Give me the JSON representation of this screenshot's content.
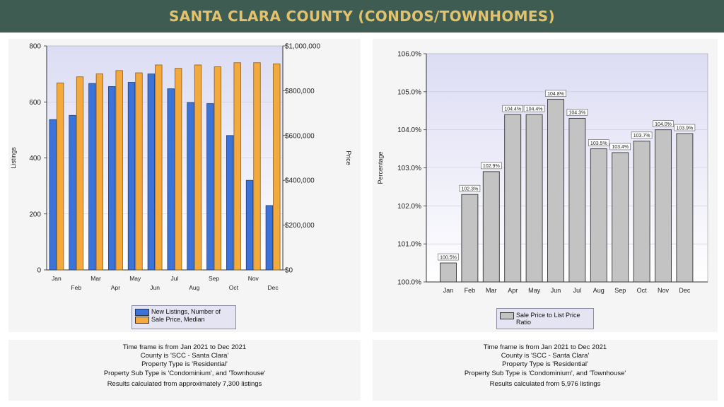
{
  "page": {
    "title": "SANTA CLARA COUNTY (CONDOS/TOWNHOMES)"
  },
  "colors": {
    "banner_bg": "#3f5c52",
    "banner_text": "#e2c26d",
    "listings": "#3b73d8",
    "price": "#f4a93c",
    "ratio": "#c3c3c3",
    "plot_bg": "#dcdcf2"
  },
  "chart_data": [
    {
      "type": "bar",
      "categories": [
        "Jan",
        "Feb",
        "Mar",
        "Apr",
        "May",
        "Jun",
        "Jul",
        "Aug",
        "Sep",
        "Oct",
        "Nov",
        "Dec"
      ],
      "series": [
        {
          "name": "New Listings, Number of",
          "axis": "left",
          "values": [
            537,
            552,
            666,
            655,
            670,
            700,
            647,
            598,
            594,
            480,
            320,
            230
          ]
        },
        {
          "name": "Sale Price, Median",
          "axis": "right",
          "values": [
            835000,
            862000,
            875000,
            890000,
            880000,
            915000,
            900000,
            915000,
            907000,
            925000,
            925000,
            920000
          ]
        }
      ],
      "ylabel": "Listings",
      "y2label": "Price",
      "ylim": [
        0,
        800
      ],
      "y2lim": [
        0,
        1000000
      ],
      "yticks": [
        "0",
        "200",
        "400",
        "600",
        "800"
      ],
      "y2ticks": [
        "$0",
        "$200,000",
        "$400,000",
        "$600,000",
        "$800,000",
        "$1,000,000"
      ],
      "legend": "bottom"
    },
    {
      "type": "bar",
      "categories": [
        "Jan",
        "Feb",
        "Mar",
        "Apr",
        "May",
        "Jun",
        "Jul",
        "Aug",
        "Sep",
        "Oct",
        "Nov",
        "Dec"
      ],
      "series": [
        {
          "name": "Sale Price to List Price Ratio",
          "values": [
            100.5,
            102.3,
            102.9,
            104.4,
            104.4,
            104.8,
            104.3,
            103.5,
            103.4,
            103.7,
            104.0,
            103.9
          ]
        }
      ],
      "data_labels": [
        "100.5%",
        "102.3%",
        "102.9%",
        "104.4%",
        "104.4%",
        "104.8%",
        "104.3%",
        "103.5%",
        "103.4%",
        "103.7%",
        "104.0%",
        "103.9%"
      ],
      "ylabel": "Percentage",
      "ylim": [
        100,
        106
      ],
      "yticks": [
        "100.0%",
        "101.0%",
        "102.0%",
        "103.0%",
        "104.0%",
        "105.0%",
        "106.0%"
      ],
      "legend": "bottom"
    }
  ],
  "info_left": {
    "lines": [
      "Time frame is from Jan 2021 to Dec 2021",
      "County is 'SCC - Santa Clara'",
      "Property Type is 'Residential'",
      "Property Sub Type is 'Condominium', and 'Townhouse'"
    ],
    "result": "Results calculated from approximately 7,300 listings"
  },
  "info_right": {
    "lines": [
      "Time frame is from Jan 2021 to Dec 2021",
      "County is 'SCC - Santa Clara'",
      "Property Type is 'Residential'",
      "Property Sub Type is 'Condominium', and 'Townhouse'"
    ],
    "result": "Results calculated from 5,976 listings"
  }
}
